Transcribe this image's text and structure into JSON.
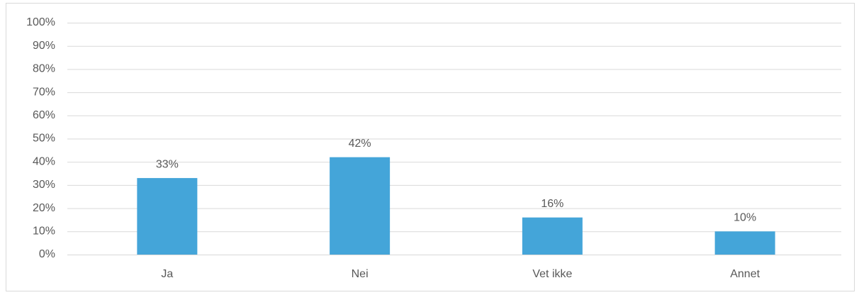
{
  "chart_data": {
    "type": "bar",
    "categories": [
      "Ja",
      "Nei",
      "Vet ikke",
      "Annet"
    ],
    "values": [
      33,
      42,
      16,
      10
    ],
    "value_labels": [
      "33%",
      "42%",
      "16%",
      "10%"
    ],
    "color": "#44a5d9",
    "ylim": [
      0,
      100
    ],
    "yticks": [
      {
        "value": 0,
        "label": "0%"
      },
      {
        "value": 10,
        "label": "10%"
      },
      {
        "value": 20,
        "label": "20%"
      },
      {
        "value": 30,
        "label": "30%"
      },
      {
        "value": 40,
        "label": "40%"
      },
      {
        "value": 50,
        "label": "50%"
      },
      {
        "value": 60,
        "label": "60%"
      },
      {
        "value": 70,
        "label": "70%"
      },
      {
        "value": 80,
        "label": "80%"
      },
      {
        "value": 90,
        "label": "90%"
      },
      {
        "value": 100,
        "label": "100%"
      }
    ],
    "grid": true
  }
}
